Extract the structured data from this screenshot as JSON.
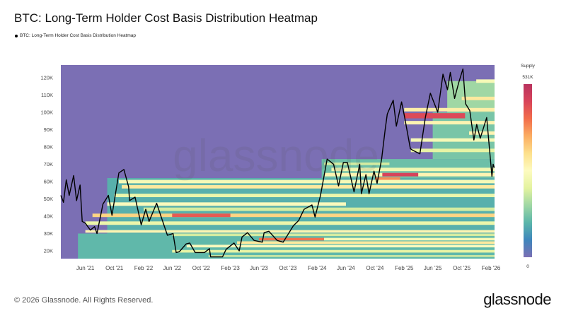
{
  "title": "BTC: Long-Term Holder Cost Basis Distribution Heatmap",
  "legend_label": "BTC: Long-Term Holder Cost Basis Distribution Heatmap",
  "footer": "© 2026 Glassnode. All Rights Reserved.",
  "brand": "glassnode",
  "watermark": "glassnode",
  "colorbar": {
    "title": "Supply",
    "max_label": "531K",
    "min_label": "0",
    "colors": [
      "#7b6fb4",
      "#3f86bc",
      "#5bb6aa",
      "#9fd7a4",
      "#e4f3a0",
      "#fdfbc0",
      "#fde08c",
      "#fbad62",
      "#f26d4b",
      "#d8445a",
      "#b9335f"
    ]
  },
  "chart_data": {
    "type": "heatmap",
    "title": "BTC: Long-Term Holder Cost Basis Distribution Heatmap",
    "xlim": [
      "2021-02-18",
      "2026-02-16"
    ],
    "ylim": [
      15.5,
      127.3
    ],
    "y_unit": "K USD",
    "colorscale_range": [
      0,
      531
    ],
    "background_color": "#7b6fb4",
    "line_color": "#000000",
    "grid": false,
    "x_ticks": [
      {
        "date": "2021-06-01",
        "label": "Jun '21"
      },
      {
        "date": "2021-10-01",
        "label": "Oct '21"
      },
      {
        "date": "2022-02-01",
        "label": "Feb '22"
      },
      {
        "date": "2022-06-01",
        "label": "Jun '22"
      },
      {
        "date": "2022-10-01",
        "label": "Oct '22"
      },
      {
        "date": "2023-02-01",
        "label": "Feb '23"
      },
      {
        "date": "2023-06-01",
        "label": "Jun '23"
      },
      {
        "date": "2023-10-01",
        "label": "Oct '23"
      },
      {
        "date": "2024-02-01",
        "label": "Feb '24"
      },
      {
        "date": "2024-06-01",
        "label": "Jun '24"
      },
      {
        "date": "2024-10-01",
        "label": "Oct '24"
      },
      {
        "date": "2025-02-01",
        "label": "Feb '25"
      },
      {
        "date": "2025-06-01",
        "label": "Jun '25"
      },
      {
        "date": "2025-10-01",
        "label": "Oct '25"
      },
      {
        "date": "2026-02-01",
        "label": "Feb '26"
      }
    ],
    "y_ticks": [
      {
        "value": 20,
        "label": "20K"
      },
      {
        "value": 30,
        "label": "30K"
      },
      {
        "value": 40,
        "label": "40K"
      },
      {
        "value": 50,
        "label": "50K"
      },
      {
        "value": 60,
        "label": "60K"
      },
      {
        "value": 70,
        "label": "70K"
      },
      {
        "value": 80,
        "label": "80K"
      },
      {
        "value": 90,
        "label": "90K"
      },
      {
        "value": 100,
        "label": "100K"
      },
      {
        "value": 110,
        "label": "110K"
      },
      {
        "value": 120,
        "label": "120K"
      }
    ],
    "price_series": [
      [
        "2021-02-18",
        52
      ],
      [
        "2021-03-01",
        48
      ],
      [
        "2021-03-13",
        61
      ],
      [
        "2021-03-25",
        52
      ],
      [
        "2021-04-13",
        63.5
      ],
      [
        "2021-04-25",
        49
      ],
      [
        "2021-05-10",
        58
      ],
      [
        "2021-05-19",
        37
      ],
      [
        "2021-06-01",
        36
      ],
      [
        "2021-06-22",
        32
      ],
      [
        "2021-07-10",
        34
      ],
      [
        "2021-07-20",
        30
      ],
      [
        "2021-08-14",
        47
      ],
      [
        "2021-09-06",
        52
      ],
      [
        "2021-09-21",
        40.5
      ],
      [
        "2021-10-20",
        65
      ],
      [
        "2021-11-10",
        67
      ],
      [
        "2021-11-30",
        57
      ],
      [
        "2021-12-04",
        49
      ],
      [
        "2021-12-27",
        51
      ],
      [
        "2022-01-22",
        35
      ],
      [
        "2022-02-10",
        44
      ],
      [
        "2022-02-24",
        37
      ],
      [
        "2022-03-28",
        47.5
      ],
      [
        "2022-04-15",
        40
      ],
      [
        "2022-05-12",
        29
      ],
      [
        "2022-06-05",
        30
      ],
      [
        "2022-06-18",
        19
      ],
      [
        "2022-07-01",
        19.5
      ],
      [
        "2022-07-30",
        24
      ],
      [
        "2022-08-14",
        24.5
      ],
      [
        "2022-09-06",
        19
      ],
      [
        "2022-10-15",
        19
      ],
      [
        "2022-11-05",
        21.3
      ],
      [
        "2022-11-10",
        16.5
      ],
      [
        "2022-12-30",
        16.5
      ],
      [
        "2023-01-14",
        20.9
      ],
      [
        "2023-02-16",
        24.5
      ],
      [
        "2023-03-10",
        20
      ],
      [
        "2023-03-22",
        28
      ],
      [
        "2023-04-14",
        30.5
      ],
      [
        "2023-05-12",
        26
      ],
      [
        "2023-06-15",
        25
      ],
      [
        "2023-06-23",
        30.5
      ],
      [
        "2023-07-13",
        31.3
      ],
      [
        "2023-08-17",
        26
      ],
      [
        "2023-09-11",
        25
      ],
      [
        "2023-10-24",
        34.5
      ],
      [
        "2023-11-15",
        37.5
      ],
      [
        "2023-12-08",
        44
      ],
      [
        "2024-01-10",
        46.5
      ],
      [
        "2024-01-23",
        39.5
      ],
      [
        "2024-02-15",
        52
      ],
      [
        "2024-03-14",
        73
      ],
      [
        "2024-04-10",
        70
      ],
      [
        "2024-05-01",
        57.5
      ],
      [
        "2024-05-21",
        71
      ],
      [
        "2024-06-07",
        71
      ],
      [
        "2024-07-05",
        54
      ],
      [
        "2024-07-29",
        70
      ],
      [
        "2024-08-05",
        53
      ],
      [
        "2024-08-24",
        64
      ],
      [
        "2024-09-06",
        53
      ],
      [
        "2024-09-27",
        66
      ],
      [
        "2024-10-10",
        59
      ],
      [
        "2024-10-29",
        73
      ],
      [
        "2024-11-13",
        90
      ],
      [
        "2024-11-22",
        99
      ],
      [
        "2024-12-17",
        107
      ],
      [
        "2024-12-30",
        92
      ],
      [
        "2025-01-21",
        106
      ],
      [
        "2025-02-03",
        97
      ],
      [
        "2025-02-27",
        79
      ],
      [
        "2025-03-10",
        78
      ],
      [
        "2025-04-08",
        76
      ],
      [
        "2025-05-01",
        97
      ],
      [
        "2025-05-22",
        111
      ],
      [
        "2025-06-22",
        100
      ],
      [
        "2025-07-14",
        122
      ],
      [
        "2025-08-02",
        113
      ],
      [
        "2025-08-14",
        123
      ],
      [
        "2025-09-01",
        108
      ],
      [
        "2025-09-18",
        117
      ],
      [
        "2025-10-06",
        125
      ],
      [
        "2025-10-17",
        105
      ],
      [
        "2025-11-04",
        101
      ],
      [
        "2025-11-21",
        84
      ],
      [
        "2025-12-03",
        93
      ],
      [
        "2025-12-18",
        85
      ],
      [
        "2026-01-14",
        97
      ],
      [
        "2026-02-05",
        63
      ],
      [
        "2026-02-10",
        70
      ],
      [
        "2026-02-15",
        68
      ]
    ],
    "heatmap_bands": [
      {
        "lo": 15.5,
        "hi": 30,
        "from": "2021-05-01",
        "to": "2026-02-16",
        "supply": 110
      },
      {
        "lo": 30,
        "hi": 62,
        "from": "2021-09-01",
        "to": "2026-02-16",
        "supply": 100
      },
      {
        "lo": 62,
        "hi": 73,
        "from": "2024-02-20",
        "to": "2026-02-16",
        "supply": 120
      },
      {
        "lo": 73,
        "hi": 100,
        "from": "2025-06-01",
        "to": "2026-02-16",
        "supply": 130
      },
      {
        "lo": 100,
        "hi": 118,
        "from": "2025-08-01",
        "to": "2026-02-16",
        "supply": 160
      },
      {
        "lo": 59,
        "hi": 61,
        "from": "2021-10-20",
        "to": "2026-02-16",
        "supply": 250
      },
      {
        "lo": 56,
        "hi": 58,
        "from": "2021-11-01",
        "to": "2026-02-16",
        "supply": 300
      },
      {
        "lo": 51,
        "hi": 53,
        "from": "2021-10-01",
        "to": "2026-02-16",
        "supply": 230
      },
      {
        "lo": 46,
        "hi": 48,
        "from": "2021-09-01",
        "to": "2024-06-01",
        "supply": 260
      },
      {
        "lo": 43,
        "hi": 45,
        "from": "2022-02-01",
        "to": "2026-02-16",
        "supply": 200
      },
      {
        "lo": 39.5,
        "hi": 41.5,
        "from": "2021-07-01",
        "to": "2026-02-16",
        "supply": 330
      },
      {
        "lo": 39.5,
        "hi": 41.5,
        "from": "2022-06-01",
        "to": "2023-02-01",
        "supply": 450
      },
      {
        "lo": 35,
        "hi": 37,
        "from": "2021-06-01",
        "to": "2026-02-16",
        "supply": 230
      },
      {
        "lo": 30.5,
        "hi": 32,
        "from": "2021-06-01",
        "to": "2026-02-16",
        "supply": 280
      },
      {
        "lo": 28.5,
        "hi": 30,
        "from": "2022-06-01",
        "to": "2026-02-16",
        "supply": 200
      },
      {
        "lo": 26,
        "hi": 27.5,
        "from": "2023-06-01",
        "to": "2024-03-01",
        "supply": 420
      },
      {
        "lo": 26,
        "hi": 27.5,
        "from": "2024-03-01",
        "to": "2026-02-16",
        "supply": 250
      },
      {
        "lo": 24,
        "hi": 25.5,
        "from": "2023-03-01",
        "to": "2026-02-16",
        "supply": 300
      },
      {
        "lo": 22,
        "hi": 23.5,
        "from": "2022-08-01",
        "to": "2026-02-16",
        "supply": 260
      },
      {
        "lo": 19,
        "hi": 20.5,
        "from": "2022-06-01",
        "to": "2026-02-16",
        "supply": 220
      },
      {
        "lo": 16.5,
        "hi": 17.5,
        "from": "2022-11-01",
        "to": "2026-02-16",
        "supply": 200
      },
      {
        "lo": 63,
        "hi": 65,
        "from": "2024-03-01",
        "to": "2026-02-16",
        "supply": 280
      },
      {
        "lo": 63,
        "hi": 65,
        "from": "2024-11-01",
        "to": "2025-04-01",
        "supply": 480
      },
      {
        "lo": 61,
        "hi": 62.5,
        "from": "2024-10-01",
        "to": "2025-01-15",
        "supply": 400
      },
      {
        "lo": 66,
        "hi": 68,
        "from": "2024-04-01",
        "to": "2026-02-16",
        "supply": 240
      },
      {
        "lo": 69.5,
        "hi": 71,
        "from": "2024-03-01",
        "to": "2024-12-01",
        "supply": 200
      },
      {
        "lo": 93,
        "hi": 95,
        "from": "2025-02-01",
        "to": "2026-02-16",
        "supply": 280
      },
      {
        "lo": 96.5,
        "hi": 99.5,
        "from": "2025-02-01",
        "to": "2025-10-15",
        "supply": 470
      },
      {
        "lo": 100.5,
        "hi": 102.5,
        "from": "2025-02-01",
        "to": "2026-02-16",
        "supply": 290
      },
      {
        "lo": 107,
        "hi": 109,
        "from": "2025-10-01",
        "to": "2026-02-16",
        "supply": 300
      },
      {
        "lo": 117,
        "hi": 119,
        "from": "2025-12-01",
        "to": "2026-02-16",
        "supply": 250
      },
      {
        "lo": 87,
        "hi": 89,
        "from": "2025-11-01",
        "to": "2026-02-16",
        "supply": 280
      },
      {
        "lo": 83,
        "hi": 85,
        "from": "2025-03-01",
        "to": "2026-02-16",
        "supply": 250
      },
      {
        "lo": 77,
        "hi": 79,
        "from": "2025-03-01",
        "to": "2026-02-16",
        "supply": 220
      }
    ]
  }
}
